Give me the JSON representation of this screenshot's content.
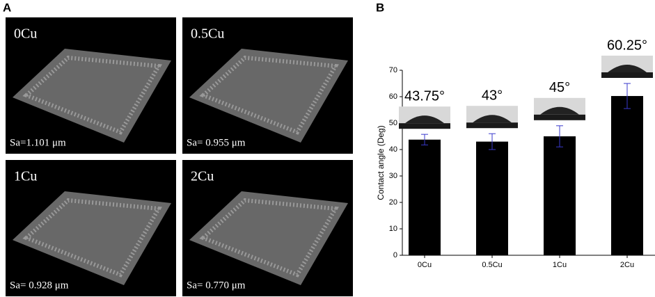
{
  "panel_a": {
    "label": "A",
    "images": [
      {
        "title": "0Cu",
        "caption": "Sa=1.101 μm"
      },
      {
        "title": "0.5Cu",
        "caption": "Sa= 0.955 μm"
      },
      {
        "title": "1Cu",
        "caption": "Sa= 0.928 μm"
      },
      {
        "title": "2Cu",
        "caption": "Sa= 0.770 μm"
      }
    ]
  },
  "panel_b_label": "B",
  "chart_data": {
    "type": "bar",
    "y_label": "Contact angle (Deg)",
    "categories": [
      "0Cu",
      "0.5Cu",
      "1Cu",
      "2Cu"
    ],
    "values": [
      43.75,
      43,
      45,
      60.25
    ],
    "value_labels": [
      "43.75°",
      "43°",
      "45°",
      "60.25°"
    ],
    "errors": [
      2,
      3,
      4,
      4.75
    ],
    "color": "#000000",
    "error_color": "#3a3acc",
    "ylim": [
      0,
      70
    ],
    "yticks": [
      0,
      10,
      20,
      30,
      40,
      50,
      60,
      70
    ]
  }
}
